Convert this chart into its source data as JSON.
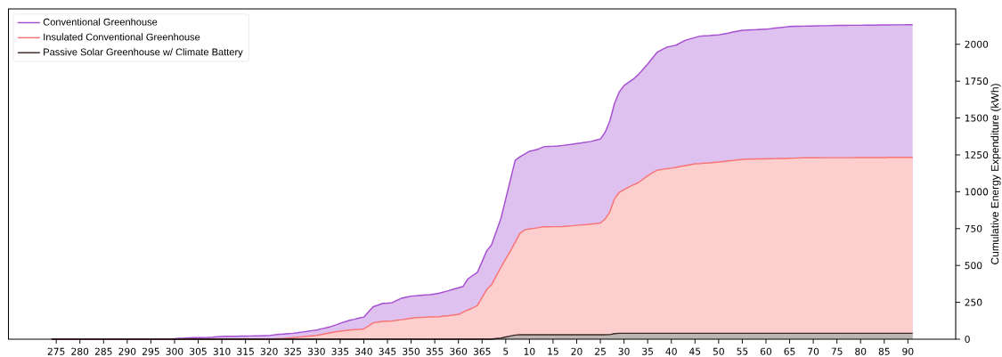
{
  "chart_data": {
    "type": "area",
    "ylabel": "Cumulative Energy Expenditure (kWh)",
    "categories": [
      null,
      "275",
      null,
      null,
      null,
      null,
      "280",
      null,
      null,
      null,
      null,
      "285",
      null,
      null,
      null,
      null,
      "290",
      null,
      null,
      null,
      null,
      "295",
      null,
      null,
      null,
      null,
      "300",
      null,
      null,
      null,
      null,
      "305",
      null,
      null,
      null,
      null,
      "310",
      null,
      null,
      null,
      null,
      "315",
      null,
      null,
      null,
      null,
      "320",
      null,
      null,
      null,
      null,
      "325",
      null,
      null,
      null,
      null,
      "330",
      null,
      null,
      null,
      null,
      "335",
      null,
      null,
      null,
      null,
      "340",
      null,
      null,
      null,
      null,
      "345",
      null,
      null,
      null,
      null,
      "350",
      null,
      null,
      null,
      null,
      "355",
      null,
      null,
      null,
      null,
      "360",
      null,
      null,
      null,
      null,
      "365",
      null,
      null,
      null,
      null,
      "5",
      null,
      null,
      null,
      null,
      "10",
      null,
      null,
      null,
      null,
      "15",
      null,
      null,
      null,
      null,
      "20",
      null,
      null,
      null,
      null,
      "25",
      null,
      null,
      null,
      null,
      "30",
      null,
      null,
      null,
      null,
      "35",
      null,
      null,
      null,
      null,
      "40",
      null,
      null,
      null,
      null,
      "45",
      null,
      null,
      null,
      null,
      "50",
      null,
      null,
      null,
      null,
      "55",
      null,
      null,
      null,
      null,
      "60",
      null,
      null,
      null,
      null,
      "65",
      null,
      null,
      null,
      null,
      "70",
      null,
      null,
      null,
      null,
      "75",
      null,
      null,
      null,
      null,
      "80",
      null,
      null,
      null,
      null,
      "85",
      null,
      null,
      null,
      null,
      "90",
      null
    ],
    "ylim": [
      0,
      2240
    ],
    "yticks": [
      0,
      250,
      500,
      750,
      1000,
      1250,
      1500,
      1750,
      2000
    ],
    "legend": "top left",
    "series": [
      {
        "name": "Conventional Greenhouse",
        "color": "#a54fd1",
        "values": [
          0,
          0,
          0,
          0,
          0,
          0,
          0,
          0,
          0,
          0,
          0,
          0,
          0,
          0,
          0,
          0,
          0,
          0,
          0,
          0,
          0,
          0,
          0,
          0,
          0,
          0,
          3,
          6,
          7,
          9,
          10,
          11,
          11,
          12,
          14,
          17,
          18,
          19,
          20,
          20,
          21,
          21,
          22,
          23,
          23,
          24,
          25,
          29,
          33,
          35,
          38,
          40,
          44,
          49,
          53,
          58,
          62,
          70,
          77,
          85,
          96,
          108,
          118,
          128,
          135,
          143,
          150,
          185,
          220,
          231,
          243,
          245,
          248,
          263,
          278,
          285,
          292,
          294,
          297,
          300,
          302,
          307,
          312,
          321,
          330,
          340,
          349,
          358,
          409,
          431,
          453,
          526,
          600,
          640,
          730,
          821,
          952,
          1082,
          1213,
          1237,
          1255,
          1274,
          1282,
          1291,
          1305,
          1307,
          1308,
          1310,
          1314,
          1318,
          1322,
          1327,
          1331,
          1336,
          1341,
          1349,
          1358,
          1402,
          1479,
          1600,
          1677,
          1720,
          1742,
          1765,
          1794,
          1830,
          1866,
          1906,
          1946,
          1963,
          1980,
          1987,
          1994,
          2011,
          2028,
          2037,
          2046,
          2055,
          2057,
          2059,
          2062,
          2064,
          2070,
          2076,
          2083,
          2089,
          2095,
          2096,
          2098,
          2099,
          2101,
          2102,
          2106,
          2110,
          2113,
          2117,
          2121,
          2122,
          2122,
          2123,
          2124,
          2124,
          2125,
          2126,
          2126,
          2127,
          2128,
          2128,
          2128,
          2129,
          2129,
          2129,
          2130,
          2130,
          2130,
          2131,
          2131,
          2131,
          2132,
          2132,
          2132,
          2133,
          2133
        ]
      },
      {
        "name": "Insulated Conventional Greenhouse",
        "color": "#f87474",
        "values": [
          0,
          0,
          0,
          0,
          0,
          0,
          0,
          0,
          0,
          0,
          0,
          0,
          0,
          0,
          0,
          0,
          0,
          0,
          0,
          0,
          0,
          0,
          0,
          0,
          0,
          0,
          0,
          0,
          0,
          0,
          0,
          0,
          0,
          0,
          0,
          0,
          0,
          0,
          0,
          0,
          0,
          0,
          0,
          0,
          0,
          0,
          0,
          1,
          3,
          5,
          8,
          10,
          13,
          16,
          20,
          23,
          26,
          32,
          38,
          44,
          50,
          54,
          58,
          62,
          65,
          67,
          70,
          90,
          111,
          116,
          121,
          122,
          123,
          128,
          132,
          137,
          142,
          147,
          148,
          149,
          151,
          152,
          153,
          157,
          160,
          164,
          167,
          183,
          198,
          212,
          227,
          283,
          338,
          368,
          429,
          489,
          544,
          598,
          658,
          718,
          742,
          747,
          752,
          757,
          762,
          762,
          763,
          763,
          764,
          767,
          769,
          772,
          775,
          777,
          780,
          783,
          788,
          815,
          863,
          952,
          996,
          1014,
          1032,
          1047,
          1061,
          1085,
          1109,
          1128,
          1146,
          1151,
          1156,
          1160,
          1165,
          1171,
          1177,
          1183,
          1189,
          1191,
          1194,
          1196,
          1199,
          1201,
          1205,
          1209,
          1212,
          1216,
          1220,
          1221,
          1221,
          1222,
          1222,
          1223,
          1224,
          1225,
          1226,
          1226,
          1227,
          1228,
          1229,
          1230,
          1230,
          1230,
          1230,
          1231,
          1231,
          1231,
          1231,
          1231,
          1231,
          1231,
          1232,
          1232,
          1232,
          1232,
          1232,
          1232,
          1232,
          1233,
          1233,
          1233,
          1233,
          1233,
          1233
        ]
      },
      {
        "name": "Passive Solar Greenhouse w/ Climate Battery",
        "color": "#3e2a25",
        "values": [
          0,
          0,
          0,
          0,
          0,
          0,
          0,
          0,
          0,
          0,
          0,
          0,
          0,
          0,
          0,
          0,
          0,
          0,
          0,
          0,
          0,
          0,
          0,
          0,
          0,
          0,
          0,
          0,
          0,
          0,
          0,
          0,
          0,
          0,
          0,
          0,
          0,
          0,
          0,
          0,
          0,
          0,
          0,
          0,
          0,
          0,
          0,
          0,
          0,
          0,
          0,
          0,
          0,
          0,
          0,
          0,
          0,
          0,
          0,
          0,
          0,
          0,
          0,
          0,
          0,
          0,
          0,
          0,
          0,
          0,
          0,
          0,
          0,
          0,
          0,
          0,
          0,
          0,
          0,
          0,
          0,
          0,
          0,
          0,
          0,
          0,
          0,
          0,
          0,
          0,
          0,
          0,
          0,
          0,
          4,
          8,
          15,
          22,
          28,
          30,
          30,
          30,
          30,
          30,
          30,
          30,
          30,
          30,
          30,
          30,
          30,
          30,
          30,
          30,
          30,
          30,
          30,
          30,
          31,
          38,
          40,
          40,
          40,
          40,
          40,
          40,
          40,
          40,
          40,
          40,
          40,
          40,
          40,
          40,
          40,
          40,
          40,
          40,
          40,
          40,
          40,
          40,
          40,
          40,
          40,
          40,
          40,
          40,
          40,
          40,
          40,
          40,
          40,
          40,
          40,
          40,
          40,
          40,
          40,
          40,
          40,
          40,
          40,
          40,
          40,
          40,
          40,
          40,
          40,
          40,
          40,
          40,
          40,
          40,
          40,
          40,
          40,
          40,
          40,
          40,
          40,
          40,
          40
        ]
      }
    ]
  }
}
